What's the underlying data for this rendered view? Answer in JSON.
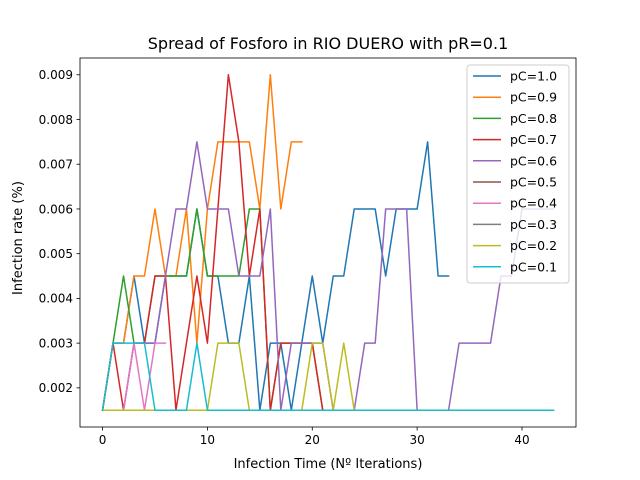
{
  "chart_data": {
    "type": "line",
    "title": "Spread of Fosforo in RIO DUERO with pR=0.1",
    "xlabel": "Infection Time (Nº Iterations)",
    "ylabel": "Infection rate (%)",
    "xlim": [
      -2.15,
      45.15
    ],
    "ylim": [
      0.001125,
      0.009375
    ],
    "xticks": [
      0,
      10,
      20,
      30,
      40
    ],
    "yticks": [
      0.002,
      0.003,
      0.004,
      0.005,
      0.006,
      0.007,
      0.008,
      0.009
    ],
    "ytick_labels": [
      "0.002",
      "0.003",
      "0.004",
      "0.005",
      "0.006",
      "0.007",
      "0.008",
      "0.009"
    ],
    "legend_position": "top-right",
    "series": [
      {
        "name": "pC=1.0",
        "color": "#1f77b4",
        "values": [
          0.0015,
          0.003,
          0.003,
          0.0045,
          0.003,
          0.003,
          0.0045,
          0.0045,
          0.0045,
          0.006,
          0.0045,
          0.0045,
          0.003,
          0.003,
          0.0045,
          0.0015,
          0.003,
          0.003,
          0.0015,
          0.003,
          0.0045,
          0.003,
          0.0045,
          0.0045,
          0.006,
          0.006,
          0.006,
          0.0045,
          0.006,
          0.006,
          0.006,
          0.0075,
          0.0045,
          0.0045
        ]
      },
      {
        "name": "pC=0.9",
        "color": "#ff7f0e",
        "values": [
          0.0015,
          0.003,
          0.003,
          0.0045,
          0.0045,
          0.006,
          0.0045,
          0.0045,
          0.006,
          0.003,
          0.006,
          0.0075,
          0.0075,
          0.0075,
          0.0075,
          0.006,
          0.009,
          0.006,
          0.0075,
          0.0075
        ]
      },
      {
        "name": "pC=0.8",
        "color": "#2ca02c",
        "values": [
          0.0015,
          0.003,
          0.0045,
          0.003,
          0.003,
          0.0045,
          0.0045,
          0.0045,
          0.0045,
          0.006,
          0.0045,
          0.0045,
          0.0045,
          0.0045,
          0.006,
          0.006,
          0.0015,
          0.003,
          0.003,
          0.003,
          0.003,
          0.0015,
          0.0015,
          0.0015,
          0.0015,
          0.0015,
          0.0015
        ]
      },
      {
        "name": "pC=0.7",
        "color": "#d62728",
        "values": [
          0.0015,
          0.003,
          0.0015,
          0.003,
          0.003,
          0.0045,
          0.0045,
          0.0015,
          0.003,
          0.0045,
          0.003,
          0.006,
          0.009,
          0.0075,
          0.0045,
          0.006,
          0.0015,
          0.003,
          0.003,
          0.003,
          0.003,
          0.0015,
          0.0015,
          0.0015,
          0.0015,
          0.0015,
          0.0015
        ]
      },
      {
        "name": "pC=0.6",
        "color": "#9467bd",
        "values": [
          0.0015,
          0.0015,
          0.0015,
          0.003,
          0.003,
          0.003,
          0.0045,
          0.006,
          0.006,
          0.0075,
          0.006,
          0.006,
          0.006,
          0.0045,
          0.0045,
          0.0045,
          0.006,
          0.0015,
          0.003,
          0.003,
          0.003,
          0.003,
          0.0015,
          0.0015,
          0.0015,
          0.003,
          0.003,
          0.006,
          0.006,
          0.006,
          0.0015,
          0.0015,
          0.0015,
          0.0015,
          0.003,
          0.003,
          0.003,
          0.003,
          0.0045,
          0.0045,
          0.006,
          0.006,
          0.006,
          0.006
        ]
      },
      {
        "name": "pC=0.5",
        "color": "#8c564b",
        "values": [
          0.0015,
          0.0015,
          0.0015,
          0.0015,
          0.0015,
          0.0015,
          0.0015,
          0.0015,
          0.0015,
          0.0015,
          0.0015,
          0.0015,
          0.0015,
          0.0015,
          0.0015,
          0.0015,
          0.0015,
          0.0015,
          0.0015,
          0.0015,
          0.0015,
          0.0015,
          0.0015,
          0.0015,
          0.0015,
          0.0015,
          0.0015
        ]
      },
      {
        "name": "pC=0.4",
        "color": "#e377c2",
        "values": [
          0.0015,
          0.0015,
          0.0015,
          0.003,
          0.0015,
          0.003,
          0.003
        ]
      },
      {
        "name": "pC=0.3",
        "color": "#7f7f7f",
        "values": [
          0.0015,
          0.0015,
          0.0015,
          0.0015,
          0.0015,
          0.0015,
          0.0015,
          0.0015,
          0.0015,
          0.0015,
          0.0015,
          0.0015,
          0.0015,
          0.0015,
          0.0015,
          0.0015,
          0.0015,
          0.0015,
          0.0015,
          0.0015,
          0.0015,
          0.0015,
          0.0015,
          0.0015,
          0.0015,
          0.0015,
          0.0015,
          0.0015,
          0.0015,
          0.0015,
          0.0015,
          0.0015,
          0.0015,
          0.0015,
          0.0015,
          0.0015,
          0.0015,
          0.0015,
          0.0015,
          0.0015,
          0.0015,
          0.0015,
          0.0015,
          0.0015
        ]
      },
      {
        "name": "pC=0.2",
        "color": "#bcbd22",
        "values": [
          0.0015,
          0.0015,
          0.0015,
          0.0015,
          0.0015,
          0.0015,
          0.0015,
          0.0015,
          0.0015,
          0.0015,
          0.0015,
          0.003,
          0.003,
          0.003,
          0.0015,
          0.0015,
          0.0015,
          0.0015,
          0.0015,
          0.0015,
          0.003,
          0.003,
          0.0015,
          0.003,
          0.0015,
          0.0015,
          0.0015
        ]
      },
      {
        "name": "pC=0.1",
        "color": "#17becf",
        "values": [
          0.0015,
          0.003,
          0.003,
          0.003,
          0.003,
          0.0015,
          0.0015,
          0.0015,
          0.0015,
          0.003,
          0.0015,
          0.0015,
          0.0015,
          0.0015,
          0.0015,
          0.0015,
          0.0015,
          0.0015,
          0.0015,
          0.0015,
          0.0015,
          0.0015,
          0.0015,
          0.0015,
          0.0015,
          0.0015,
          0.0015,
          0.0015,
          0.0015,
          0.0015,
          0.0015,
          0.0015,
          0.0015,
          0.0015,
          0.0015,
          0.0015,
          0.0015,
          0.0015,
          0.0015,
          0.0015,
          0.0015,
          0.0015,
          0.0015,
          0.0015
        ]
      }
    ]
  }
}
